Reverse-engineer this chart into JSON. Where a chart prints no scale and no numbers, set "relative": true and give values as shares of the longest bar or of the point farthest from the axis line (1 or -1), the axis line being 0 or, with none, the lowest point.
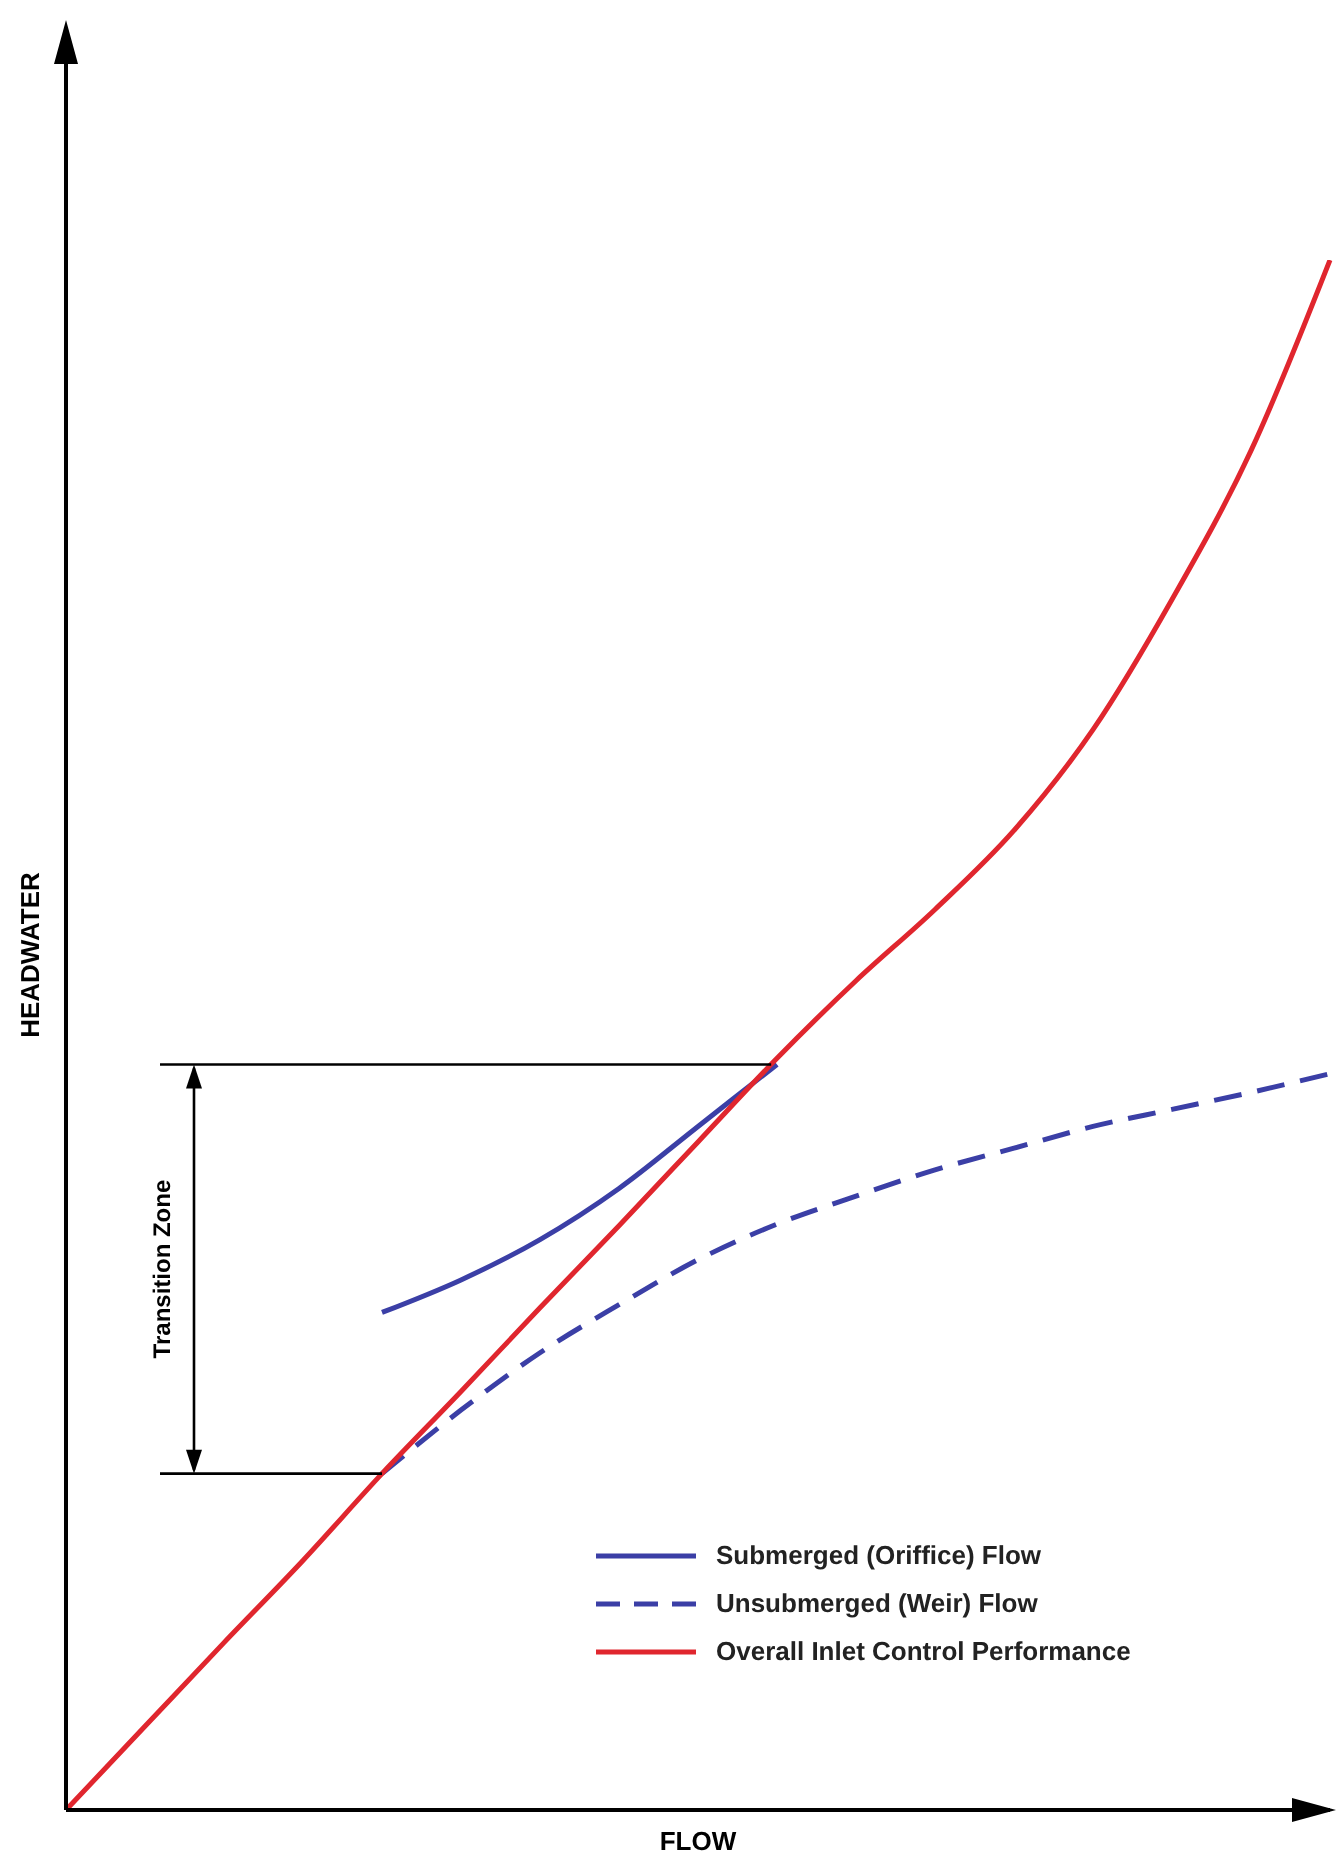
{
  "chart_data": {
    "type": "line",
    "relative": true,
    "xlabel": "FLOW",
    "ylabel": "HEADWATER",
    "categories": [
      null,
      null,
      null,
      null,
      null,
      null,
      null,
      null,
      null,
      null,
      null,
      null,
      null,
      null,
      null,
      null,
      null
    ],
    "tick_labels": false,
    "grid": false,
    "legend": "bottom right",
    "marker": "none",
    "annotations": [
      "Transition Zone"
    ],
    "ref_lines": [
      {
        "axis": "y",
        "value": 0.481,
        "color": "#000000"
      },
      {
        "axis": "y",
        "value": 0.217,
        "color": "#000000"
      }
    ],
    "series": [
      {
        "name": "Submerged (Oriffice) Flow",
        "color": "#3b3fa6",
        "line_style": "solid",
        "values": [
          null,
          null,
          null,
          null,
          0.321,
          0.342,
          0.368,
          0.401,
          0.441,
          0.481,
          null,
          null,
          null,
          null,
          null,
          null,
          null
        ]
      },
      {
        "name": "Unsubmerged (Weir) Flow",
        "color": "#3b3fa6",
        "line_style": "dashed",
        "values": [
          null,
          null,
          null,
          null,
          0.217,
          0.258,
          0.295,
          0.326,
          0.355,
          0.378,
          0.396,
          0.413,
          0.427,
          0.441,
          0.452,
          0.463,
          0.475
        ]
      },
      {
        "name": "Overall Inlet Control Performance",
        "color": "#e0262e",
        "line_style": "solid",
        "values": [
          0,
          0.054,
          0.108,
          0.161,
          0.217,
          0.27,
          0.324,
          0.377,
          0.431,
          0.485,
          0.535,
          0.581,
          0.632,
          0.697,
          0.781,
          0.877,
          1.0
        ]
      }
    ]
  }
}
